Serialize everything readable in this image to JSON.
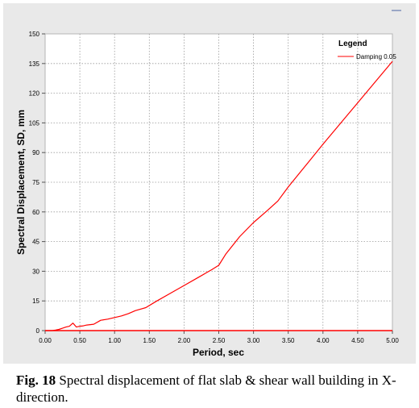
{
  "chart_data": {
    "type": "line",
    "xlabel": "Period, sec",
    "ylabel": "Spectral Displacement, SD, mm",
    "xlim": [
      0,
      5
    ],
    "ylim": [
      0,
      150
    ],
    "x_ticks": [
      "0.00",
      "0.50",
      "1.00",
      "1.50",
      "2.00",
      "2.50",
      "3.00",
      "3.50",
      "4.00",
      "4.50",
      "5.00"
    ],
    "y_ticks": [
      "0",
      "15",
      "30",
      "45",
      "60",
      "75",
      "90",
      "105",
      "120",
      "135",
      "150"
    ],
    "grid": true,
    "legend": {
      "title": "Legend",
      "placement": "top-right"
    },
    "series": [
      {
        "name": "Damping 0.05",
        "color": "#ff0000",
        "x": [
          0.0,
          0.1,
          0.15,
          0.2,
          0.25,
          0.3,
          0.35,
          0.4,
          0.45,
          0.5,
          0.55,
          0.6,
          0.7,
          0.8,
          0.9,
          1.0,
          1.1,
          1.2,
          1.3,
          1.45,
          1.6,
          1.8,
          2.0,
          2.2,
          2.4,
          2.5,
          2.6,
          2.8,
          3.0,
          3.2,
          3.35,
          3.5,
          3.7,
          4.0,
          4.3,
          4.6,
          5.0
        ],
        "y": [
          0.0,
          0.0,
          0.3,
          0.6,
          1.2,
          1.8,
          2.2,
          3.8,
          1.8,
          2.2,
          2.4,
          2.8,
          3.2,
          5.2,
          5.8,
          6.6,
          7.4,
          8.6,
          10.1,
          11.6,
          14.8,
          18.8,
          22.8,
          26.8,
          30.8,
          33.0,
          38.6,
          47.5,
          54.6,
          60.7,
          65.5,
          72.6,
          81.2,
          94.2,
          106.8,
          119.3,
          136.1
        ]
      },
      {
        "name": "",
        "color": "#ff0000",
        "x": [
          0.0,
          5.0
        ],
        "y": [
          0.0,
          0.0
        ]
      }
    ]
  },
  "caption": {
    "label": "Fig. 18",
    "text": "Spectral displacement of flat slab & shear wall building in X-direction."
  }
}
